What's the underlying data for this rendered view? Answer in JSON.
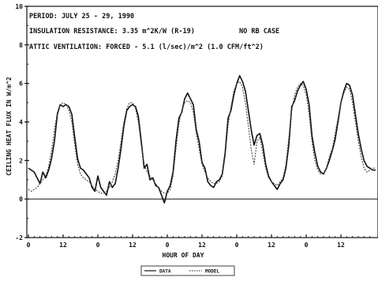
{
  "chart_data": {
    "type": "line",
    "annotations": [
      "PERIOD: JULY 25 - 29, 1990",
      "INSULATION RESISTANCE: 3.35 m^2K/W (R-19)",
      "ATTIC VENTILATION: FORCED -  5.1 (l/sec)/m^2  (1.0 CFM/ft^2)",
      "NO RB CASE"
    ],
    "xlabel": "HOUR OF DAY",
    "ylabel": "CEILING HEAT FLUX IN W/m^2",
    "y_ticks": [
      "-2",
      "0",
      "2",
      "4",
      "6",
      "8",
      "10"
    ],
    "x_ticks": [
      "0",
      "12",
      "0",
      "12",
      "0",
      "12",
      "0",
      "12",
      "0",
      "12"
    ],
    "x_tick_hours": [
      0,
      12,
      24,
      36,
      48,
      60,
      72,
      84,
      96,
      108
    ],
    "xlim": [
      0,
      120
    ],
    "ylim": [
      -2,
      10
    ],
    "zero_line": true,
    "legend_position": "bottom-center",
    "series": [
      {
        "name": "DATA",
        "style": "solid",
        "x": [
          0,
          1,
          2,
          3,
          4,
          5,
          6,
          7,
          8,
          9,
          10,
          11,
          12,
          13,
          14,
          15,
          16,
          17,
          18,
          19,
          20,
          21,
          22,
          23,
          24,
          25,
          26,
          27,
          28,
          29,
          30,
          31,
          32,
          33,
          34,
          35,
          36,
          37,
          38,
          39,
          40,
          41,
          42,
          43,
          44,
          45,
          46,
          47,
          48,
          49,
          50,
          51,
          52,
          53,
          54,
          55,
          56,
          57,
          58,
          59,
          60,
          61,
          62,
          63,
          64,
          65,
          66,
          67,
          68,
          69,
          70,
          71,
          72,
          73,
          74,
          75,
          76,
          77,
          78,
          79,
          80,
          81,
          82,
          83,
          84,
          85,
          86,
          87,
          88,
          89,
          90,
          91,
          92,
          93,
          94,
          95,
          96,
          97,
          98,
          99,
          100,
          101,
          102,
          103,
          104,
          105,
          106,
          107,
          108,
          109,
          110,
          111,
          112,
          113,
          114,
          115,
          116,
          117,
          118,
          119,
          120
        ],
        "y": [
          1.6,
          1.5,
          1.4,
          1.1,
          0.8,
          1.4,
          1.1,
          1.5,
          2.1,
          3.0,
          4.4,
          4.9,
          4.8,
          4.9,
          4.8,
          4.4,
          3.2,
          2.1,
          1.6,
          1.5,
          1.3,
          1.1,
          0.6,
          0.4,
          1.2,
          0.6,
          0.4,
          0.2,
          0.9,
          0.6,
          0.8,
          1.6,
          2.6,
          3.8,
          4.6,
          4.8,
          4.9,
          4.8,
          4.3,
          3.0,
          1.6,
          1.8,
          1.0,
          1.1,
          0.7,
          0.6,
          0.2,
          -0.2,
          0.4,
          0.7,
          1.4,
          3.0,
          4.2,
          4.5,
          5.2,
          5.5,
          5.2,
          4.9,
          3.6,
          3.0,
          1.9,
          1.6,
          0.9,
          0.7,
          0.6,
          0.9,
          1.0,
          1.3,
          2.4,
          4.2,
          4.6,
          5.4,
          6.0,
          6.4,
          6.1,
          5.6,
          4.6,
          3.6,
          2.8,
          3.3,
          3.4,
          2.8,
          1.8,
          1.2,
          0.9,
          0.7,
          0.5,
          0.8,
          1.0,
          1.6,
          2.8,
          4.8,
          5.1,
          5.6,
          5.9,
          6.1,
          5.7,
          4.9,
          3.3,
          2.4,
          1.7,
          1.4,
          1.3,
          1.6,
          2.0,
          2.5,
          3.1,
          4.0,
          5.0,
          5.6,
          6.0,
          5.9,
          5.4,
          4.4,
          3.4,
          2.6,
          2.0,
          1.7,
          1.6,
          1.5,
          1.5
        ],
        "color": "#111111"
      },
      {
        "name": "MODEL",
        "style": "dashed",
        "x": [
          0,
          1,
          2,
          3,
          4,
          5,
          6,
          7,
          8,
          9,
          10,
          11,
          12,
          13,
          14,
          15,
          16,
          17,
          18,
          19,
          20,
          21,
          22,
          23,
          24,
          25,
          26,
          27,
          28,
          29,
          30,
          31,
          32,
          33,
          34,
          35,
          36,
          37,
          38,
          39,
          40,
          41,
          42,
          43,
          44,
          45,
          46,
          47,
          48,
          49,
          50,
          51,
          52,
          53,
          54,
          55,
          56,
          57,
          58,
          59,
          60,
          61,
          62,
          63,
          64,
          65,
          66,
          67,
          68,
          69,
          70,
          71,
          72,
          73,
          74,
          75,
          76,
          77,
          78,
          79,
          80,
          81,
          82,
          83,
          84,
          85,
          86,
          87,
          88,
          89,
          90,
          91,
          92,
          93,
          94,
          95,
          96,
          97,
          98,
          99,
          100,
          101,
          102,
          103,
          104,
          105,
          106,
          107,
          108,
          109,
          110,
          111,
          112,
          113,
          114,
          115,
          116,
          117,
          118,
          119,
          120
        ],
        "y": [
          0.5,
          0.4,
          0.5,
          0.6,
          0.8,
          1.0,
          1.2,
          1.7,
          2.5,
          3.6,
          4.5,
          4.9,
          5.0,
          4.9,
          4.6,
          4.0,
          2.8,
          1.8,
          1.3,
          1.1,
          1.0,
          0.9,
          0.7,
          0.5,
          0.4,
          0.3,
          0.3,
          0.4,
          0.6,
          0.9,
          1.3,
          2.0,
          3.0,
          4.0,
          4.7,
          5.0,
          5.0,
          4.7,
          4.0,
          2.8,
          1.8,
          1.4,
          1.2,
          1.0,
          0.8,
          0.6,
          0.4,
          0.3,
          0.3,
          0.5,
          1.2,
          2.6,
          3.9,
          4.6,
          5.0,
          5.1,
          5.0,
          4.5,
          3.4,
          2.6,
          1.8,
          1.4,
          1.1,
          0.9,
          0.8,
          0.8,
          0.9,
          1.2,
          2.2,
          3.8,
          4.8,
          5.6,
          6.0,
          6.1,
          5.8,
          5.0,
          3.8,
          2.6,
          1.8,
          3.0,
          3.2,
          2.4,
          1.6,
          1.1,
          0.9,
          0.8,
          0.7,
          0.9,
          1.1,
          1.8,
          3.2,
          4.6,
          5.4,
          5.8,
          6.0,
          5.9,
          5.4,
          4.4,
          3.0,
          2.0,
          1.5,
          1.3,
          1.3,
          1.6,
          2.2,
          2.6,
          3.4,
          4.2,
          5.0,
          5.5,
          5.8,
          5.7,
          5.0,
          4.0,
          3.0,
          2.2,
          1.6,
          1.4,
          1.5,
          1.6,
          1.6
        ],
        "color": "#444444"
      }
    ]
  }
}
